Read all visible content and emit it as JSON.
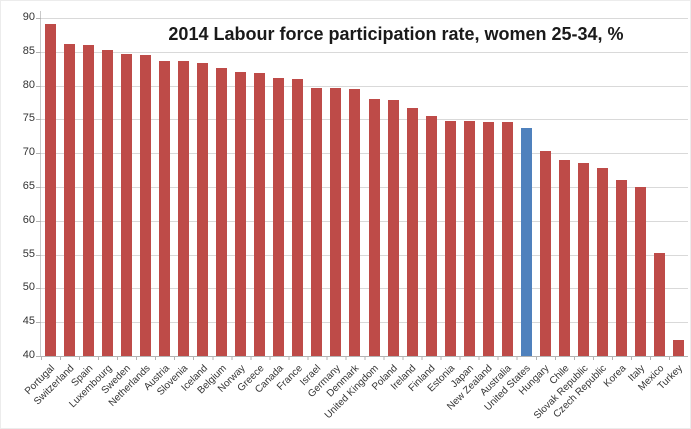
{
  "chart_data": {
    "type": "bar",
    "title": "2014 Labour force participation rate, women 25-34, %",
    "xlabel": "",
    "ylabel": "",
    "categories": [
      "Portugal",
      "Switzerland",
      "Spain",
      "Luxembourg",
      "Sweden",
      "Netherlands",
      "Austria",
      "Slovenia",
      "Iceland",
      "Belgium",
      "Norway",
      "Greece",
      "Canada",
      "France",
      "Israel",
      "Germany",
      "Denmark",
      "United Kingdom",
      "Poland",
      "Ireland",
      "Finland",
      "Estonia",
      "Japan",
      "New Zealand",
      "Australia",
      "United States",
      "Hungary",
      "Chile",
      "Slovak Republic",
      "Czech Republic",
      "Korea",
      "Italy",
      "Mexico",
      "Turkey"
    ],
    "values": [
      89.1,
      86.2,
      86.0,
      85.3,
      84.7,
      84.5,
      83.7,
      83.6,
      83.4,
      82.6,
      82.0,
      81.9,
      81.2,
      81.0,
      79.7,
      79.6,
      79.5,
      78.0,
      77.9,
      76.7,
      75.5,
      74.8,
      74.7,
      74.6,
      74.6,
      73.8,
      70.3,
      69.0,
      68.5,
      67.8,
      66.0,
      65.0,
      55.2,
      42.4
    ],
    "highlight_category": "United States",
    "ylim": [
      40,
      90
    ],
    "y_ticks": [
      40,
      45,
      50,
      55,
      60,
      65,
      70,
      75,
      80,
      85,
      90
    ],
    "grid": "horizontal",
    "legend": "none",
    "colors": {
      "bar": "#BE4B48",
      "highlight": "#4F81BD",
      "gridline": "#D9D9D9",
      "axis": "#B3B3B3",
      "text": "#333333"
    }
  }
}
